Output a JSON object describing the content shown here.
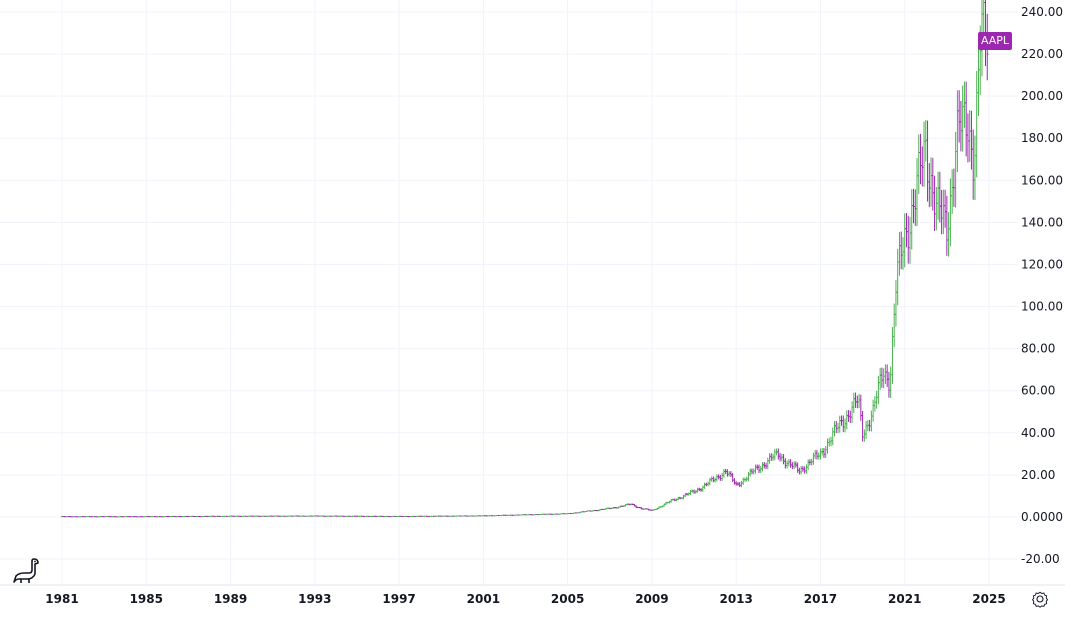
{
  "symbol": "AAPL",
  "colors": {
    "up": "#4caf50",
    "down": "#9c27b0",
    "badge": "#9c27b0",
    "grid": "#f0f3fa"
  },
  "icons": {
    "logo": "dinosaur-logo-icon",
    "settings": "settings-gear-icon"
  },
  "chart_data": {
    "type": "bar",
    "style": "ohlc",
    "y_ticks": [
      "240.00",
      "220.00",
      "200.00",
      "180.00",
      "160.00",
      "140.00",
      "120.00",
      "100.00",
      "80.00",
      "60.00",
      "40.00",
      "20.00",
      "0.0000",
      "-20.00"
    ],
    "ylim": [
      -20,
      240
    ],
    "x_ticks": [
      "1981",
      "1985",
      "1989",
      "1993",
      "1997",
      "2001",
      "2005",
      "2009",
      "2013",
      "2017",
      "2021",
      "2025"
    ],
    "xlim": [
      1981,
      2025
    ],
    "grid": true,
    "series": [
      {
        "name": "AAPL",
        "x": [
          1981,
          1985,
          1989,
          1993,
          1997,
          2001,
          2005,
          2007,
          2008,
          2008.5,
          2009,
          2010,
          2011,
          2012,
          2012.5,
          2013,
          2014,
          2015,
          2015.5,
          2016,
          2017,
          2018,
          2018.8,
          2019,
          2019.5,
          2020,
          2020.3,
          2020.6,
          2021,
          2021.5,
          2022,
          2022.5,
          2023,
          2023.5,
          2024,
          2024.3,
          2024.6,
          2025
        ],
        "y": [
          0.1,
          0.1,
          0.3,
          0.4,
          0.2,
          0.5,
          1.5,
          4,
          6,
          4,
          3,
          8,
          12,
          18,
          22,
          15,
          23,
          30,
          25,
          22,
          30,
          45,
          55,
          40,
          50,
          70,
          65,
          110,
          135,
          150,
          178,
          145,
          140,
          180,
          190,
          170,
          225,
          232
        ]
      }
    ]
  }
}
